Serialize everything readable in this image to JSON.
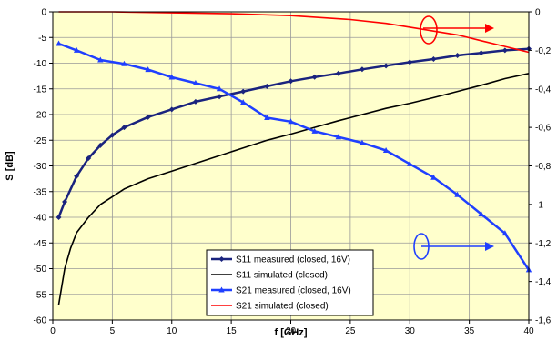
{
  "chart_data": {
    "type": "line",
    "xlabel": "f [GHz]",
    "ylabel": "S [dB]",
    "xlim": [
      0,
      40
    ],
    "ylim": [
      -60,
      0
    ],
    "y2lim": [
      -1.6,
      0
    ],
    "grid": true,
    "background": "#ffffcc",
    "legend_placement": "bottom-center",
    "x_ticks": [
      "0",
      "5",
      "10",
      "15",
      "20",
      "25",
      "30",
      "35",
      "40"
    ],
    "y_ticks": [
      "0",
      "-5",
      "-10",
      "-15",
      "-20",
      "-25",
      "-30",
      "-35",
      "-40",
      "-45",
      "-50",
      "-55",
      "-60"
    ],
    "y2_ticks": [
      "0",
      "-0,2",
      "-0,4",
      "-0,6",
      "-0,8",
      "-1",
      "-1,2",
      "-1,4",
      "-1,6"
    ],
    "series": [
      {
        "name": "S11 measured (closed, 16V)",
        "axis": "left",
        "color": "#1a237e",
        "marker": "diamond",
        "x": [
          0.5,
          1,
          2,
          3,
          4,
          5,
          6,
          8,
          10,
          12,
          14,
          16,
          18,
          20,
          22,
          24,
          26,
          28,
          30,
          32,
          34,
          36,
          38,
          40
        ],
        "y": [
          -40,
          -37,
          -32,
          -28.5,
          -26,
          -24,
          -22.5,
          -20.5,
          -19,
          -17.5,
          -16.5,
          -15.5,
          -14.5,
          -13.5,
          -12.7,
          -12,
          -11.2,
          -10.5,
          -9.8,
          -9.2,
          -8.5,
          -8,
          -7.5,
          -7.2
        ]
      },
      {
        "name": "S11 simulated (closed)",
        "axis": "left",
        "color": "#000000",
        "x": [
          0.5,
          1,
          1.5,
          2,
          3,
          4,
          5,
          6,
          8,
          10,
          12,
          14,
          16,
          18,
          20,
          22,
          24,
          26,
          28,
          30,
          32,
          34,
          36,
          38,
          40
        ],
        "y": [
          -57,
          -50,
          -46,
          -43,
          -40,
          -37.5,
          -36,
          -34.5,
          -32.5,
          -31,
          -29.5,
          -28,
          -26.5,
          -25,
          -23.8,
          -22.5,
          -21.2,
          -20,
          -18.8,
          -17.8,
          -16.7,
          -15.5,
          -14.3,
          -13,
          -12
        ]
      },
      {
        "name": "S21 measured (closed, 16V)",
        "axis": "right",
        "color": "#1f3fff",
        "marker": "triangle",
        "x": [
          0.5,
          2,
          4,
          6,
          8,
          10,
          12,
          14,
          16,
          18,
          20,
          22,
          24,
          26,
          28,
          30,
          32,
          34,
          36,
          38,
          40
        ],
        "y": [
          -0.165,
          -0.2,
          -0.25,
          -0.27,
          -0.3,
          -0.34,
          -0.37,
          -0.4,
          -0.47,
          -0.55,
          -0.57,
          -0.62,
          -0.65,
          -0.68,
          -0.72,
          -0.79,
          -0.86,
          -0.95,
          -1.05,
          -1.15,
          -1.34
        ]
      },
      {
        "name": "S21 simulated (closed)",
        "axis": "right",
        "color": "#ff0000",
        "x": [
          0.5,
          5,
          10,
          15,
          20,
          25,
          28,
          30,
          32,
          34,
          36,
          38,
          40
        ],
        "y": [
          0,
          0,
          -0.005,
          -0.01,
          -0.02,
          -0.04,
          -0.06,
          -0.08,
          -0.1,
          -0.12,
          -0.15,
          -0.18,
          -0.21
        ]
      }
    ]
  }
}
